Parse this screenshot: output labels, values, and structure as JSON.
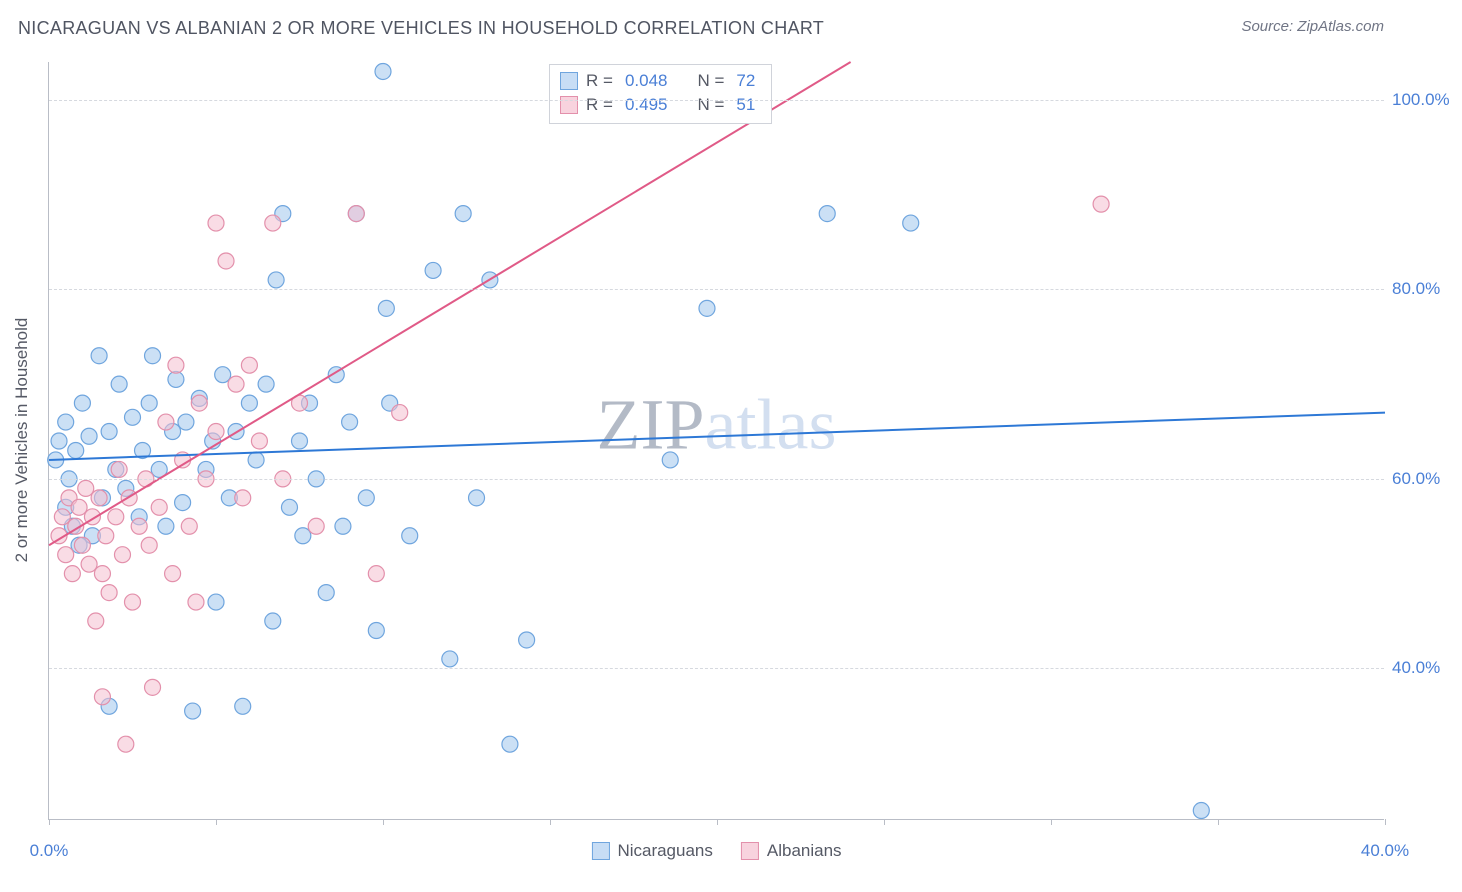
{
  "title": "NICARAGUAN VS ALBANIAN 2 OR MORE VEHICLES IN HOUSEHOLD CORRELATION CHART",
  "source_label": "Source: ZipAtlas.com",
  "watermark_main": "ZIP",
  "watermark_rest": "atlas",
  "y_axis_label": "2 or more Vehicles in Household",
  "x_range": [
    0,
    40
  ],
  "y_range": [
    24,
    104
  ],
  "y_gridlines": [
    40,
    60,
    80,
    100
  ],
  "y_tick_format": "0.0%",
  "x_ticks": [
    0,
    5,
    10,
    15,
    20,
    25,
    30,
    35,
    40
  ],
  "x_tick_labels": {
    "0": "0.0%",
    "40": "40.0%"
  },
  "stats_box": {
    "rows": [
      {
        "swatch_fill": "#c7ddf5",
        "swatch_border": "#6fa5de",
        "r_label": "R =",
        "r": "0.048",
        "n_label": "N =",
        "n": "72"
      },
      {
        "swatch_fill": "#f8d3de",
        "swatch_border": "#e390ab",
        "r_label": "R =",
        "r": "0.495",
        "n_label": "N =",
        "n": "51"
      }
    ]
  },
  "legend": [
    {
      "swatch_fill": "#c7ddf5",
      "swatch_border": "#6fa5de",
      "label": "Nicaraguans"
    },
    {
      "swatch_fill": "#f8d3de",
      "swatch_border": "#e390ab",
      "label": "Albanians"
    }
  ],
  "series": [
    {
      "name": "Nicaraguans",
      "marker_fill": "rgba(160,198,237,0.55)",
      "marker_stroke": "#6fa5de",
      "marker_r": 8,
      "trend": {
        "x1": 0,
        "y1": 62,
        "x2": 40,
        "y2": 67,
        "color": "#2d78d6",
        "width": 2
      },
      "points": [
        [
          0.2,
          62
        ],
        [
          0.3,
          64
        ],
        [
          0.5,
          57
        ],
        [
          0.5,
          66
        ],
        [
          0.6,
          60
        ],
        [
          0.7,
          55
        ],
        [
          0.8,
          63
        ],
        [
          0.9,
          53
        ],
        [
          1.0,
          68
        ],
        [
          1.2,
          64.5
        ],
        [
          1.3,
          54
        ],
        [
          1.5,
          73
        ],
        [
          1.6,
          58
        ],
        [
          1.8,
          65
        ],
        [
          1.8,
          36
        ],
        [
          2.0,
          61
        ],
        [
          2.1,
          70
        ],
        [
          2.3,
          59
        ],
        [
          2.5,
          66.5
        ],
        [
          2.7,
          56
        ],
        [
          2.8,
          63
        ],
        [
          3.0,
          68
        ],
        [
          3.1,
          73
        ],
        [
          3.3,
          61
        ],
        [
          3.5,
          55
        ],
        [
          3.7,
          65
        ],
        [
          3.8,
          70.5
        ],
        [
          4.0,
          57.5
        ],
        [
          4.1,
          66
        ],
        [
          4.3,
          35.5
        ],
        [
          4.5,
          68.5
        ],
        [
          4.7,
          61
        ],
        [
          4.9,
          64
        ],
        [
          5.0,
          47
        ],
        [
          5.2,
          71
        ],
        [
          5.4,
          58
        ],
        [
          5.6,
          65
        ],
        [
          5.8,
          36
        ],
        [
          6.0,
          68
        ],
        [
          6.2,
          62
        ],
        [
          6.5,
          70
        ],
        [
          6.7,
          45
        ],
        [
          6.8,
          81
        ],
        [
          7.0,
          88
        ],
        [
          7.2,
          57
        ],
        [
          7.5,
          64
        ],
        [
          7.6,
          54
        ],
        [
          7.8,
          68
        ],
        [
          8.0,
          60
        ],
        [
          8.3,
          48
        ],
        [
          8.6,
          71
        ],
        [
          8.8,
          55
        ],
        [
          9.0,
          66
        ],
        [
          9.2,
          88
        ],
        [
          9.5,
          58
        ],
        [
          9.8,
          44
        ],
        [
          10.0,
          103
        ],
        [
          10.1,
          78
        ],
        [
          10.2,
          68
        ],
        [
          10.8,
          54
        ],
        [
          11.5,
          82
        ],
        [
          12.0,
          41
        ],
        [
          12.4,
          88
        ],
        [
          12.8,
          58
        ],
        [
          13.2,
          81
        ],
        [
          13.8,
          32
        ],
        [
          14.3,
          43
        ],
        [
          18.6,
          62
        ],
        [
          19.7,
          78
        ],
        [
          23.3,
          88
        ],
        [
          25.8,
          87
        ],
        [
          34.5,
          25
        ]
      ]
    },
    {
      "name": "Albanians",
      "marker_fill": "rgba(244,192,207,0.55)",
      "marker_stroke": "#e390ab",
      "marker_r": 8,
      "trend": {
        "x1": 0,
        "y1": 53,
        "x2": 24,
        "y2": 104,
        "color": "#e05a87",
        "width": 2
      },
      "points": [
        [
          0.3,
          54
        ],
        [
          0.4,
          56
        ],
        [
          0.5,
          52
        ],
        [
          0.6,
          58
        ],
        [
          0.7,
          50
        ],
        [
          0.8,
          55
        ],
        [
          0.9,
          57
        ],
        [
          1.0,
          53
        ],
        [
          1.1,
          59
        ],
        [
          1.2,
          51
        ],
        [
          1.3,
          56
        ],
        [
          1.4,
          45
        ],
        [
          1.5,
          58
        ],
        [
          1.6,
          50
        ],
        [
          1.7,
          54
        ],
        [
          1.8,
          48
        ],
        [
          1.6,
          37
        ],
        [
          2.0,
          56
        ],
        [
          2.1,
          61
        ],
        [
          2.2,
          52
        ],
        [
          2.4,
          58
        ],
        [
          2.5,
          47
        ],
        [
          2.7,
          55
        ],
        [
          2.3,
          32
        ],
        [
          2.9,
          60
        ],
        [
          3.0,
          53
        ],
        [
          3.1,
          38
        ],
        [
          3.3,
          57
        ],
        [
          3.5,
          66
        ],
        [
          3.7,
          50
        ],
        [
          3.8,
          72
        ],
        [
          4.0,
          62
        ],
        [
          4.2,
          55
        ],
        [
          4.4,
          47
        ],
        [
          4.5,
          68
        ],
        [
          4.7,
          60
        ],
        [
          5.0,
          65
        ],
        [
          5.3,
          83
        ],
        [
          5.0,
          87
        ],
        [
          5.6,
          70
        ],
        [
          5.8,
          58
        ],
        [
          6.0,
          72
        ],
        [
          6.3,
          64
        ],
        [
          6.7,
          87
        ],
        [
          7.0,
          60
        ],
        [
          7.5,
          68
        ],
        [
          8.0,
          55
        ],
        [
          9.2,
          88
        ],
        [
          9.8,
          50
        ],
        [
          10.5,
          67
        ],
        [
          31.5,
          89
        ]
      ]
    }
  ]
}
